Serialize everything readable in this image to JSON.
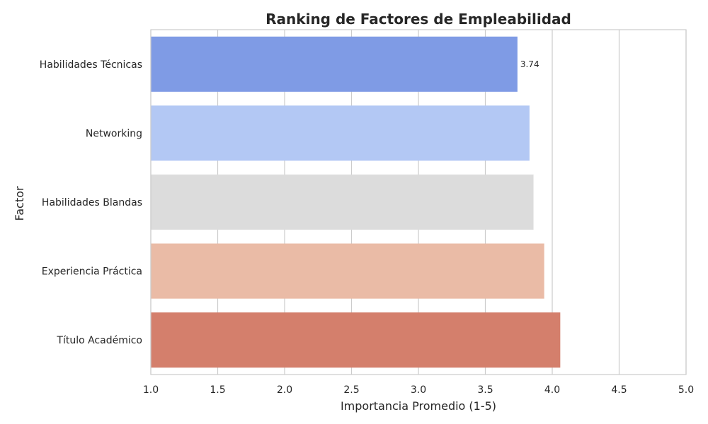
{
  "chart_data": {
    "type": "bar",
    "orientation": "horizontal",
    "title": "Ranking de Factores de Empleabilidad",
    "xlabel": "Importancia Promedio (1-5)",
    "ylabel": "Factor",
    "categories": [
      "Habilidades Técnicas",
      "Networking",
      "Habilidades Blandas",
      "Experiencia Práctica",
      "Título Académico"
    ],
    "values": [
      3.74,
      3.83,
      3.86,
      3.94,
      4.06
    ],
    "colors": [
      "#7f9be5",
      "#b3c8f4",
      "#dcdcdc",
      "#eabba6",
      "#d47f6c"
    ],
    "data_labels": [
      {
        "index": 0,
        "text": "3.74"
      }
    ],
    "xlim": [
      1.0,
      5.0
    ],
    "xticks": [
      "1.0",
      "1.5",
      "2.0",
      "2.5",
      "3.0",
      "3.5",
      "4.0",
      "4.5",
      "5.0"
    ],
    "grid": "vertical",
    "legend": "none"
  }
}
